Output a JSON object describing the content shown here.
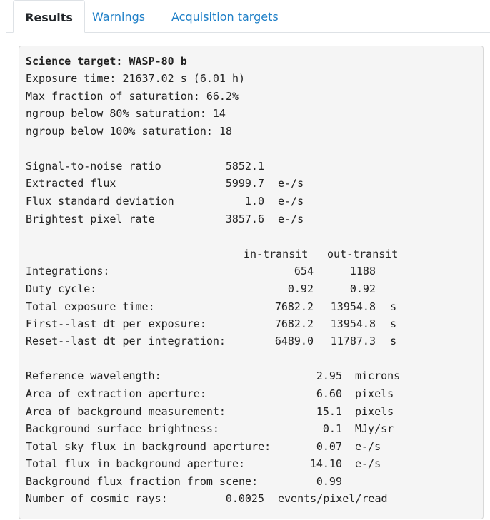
{
  "tabs": [
    {
      "label": "Results",
      "active": true
    },
    {
      "label": "Warnings",
      "active": false
    },
    {
      "label": "Acquisition targets",
      "active": false
    }
  ],
  "summary": {
    "science_target": "Science target: WASP-80 b",
    "exposure_time": "Exposure time: 21637.02 s (6.01 h)",
    "max_saturation": "Max fraction of saturation: 66.2%",
    "ngroup_80": "ngroup below 80% saturation: 14",
    "ngroup_100": "ngroup below 100% saturation: 18"
  },
  "snr": [
    {
      "label": "Signal-to-noise ratio",
      "value": "5852.1",
      "unit": ""
    },
    {
      "label": "Extracted flux",
      "value": "5999.7",
      "unit": "e-/s"
    },
    {
      "label": "Flux standard deviation",
      "value": "1.0",
      "unit": "e-/s"
    },
    {
      "label": "Brightest pixel rate",
      "value": "3857.6",
      "unit": "e-/s"
    }
  ],
  "transit": {
    "col_in": "in-transit",
    "col_out": "out-transit",
    "rows": [
      {
        "label": "Integrations:",
        "in": "654",
        "out": "1188",
        "unit": ""
      },
      {
        "label": "Duty cycle:",
        "in": "0.92",
        "out": "0.92",
        "unit": ""
      },
      {
        "label": "Total exposure time:",
        "in": "7682.2",
        "out": "13954.8",
        "unit": "s"
      },
      {
        "label": "First--last dt per exposure:",
        "in": "7682.2",
        "out": "13954.8",
        "unit": "s"
      },
      {
        "label": "Reset--last dt per integration:",
        "in": "6489.0",
        "out": "11787.3",
        "unit": "s"
      }
    ]
  },
  "background": [
    {
      "label": "Reference wavelength:",
      "value": "2.95",
      "unit": "microns"
    },
    {
      "label": "Area of extraction aperture:",
      "value": "6.60",
      "unit": "pixels"
    },
    {
      "label": "Area of background measurement:",
      "value": "15.1",
      "unit": "pixels"
    },
    {
      "label": "Background surface brightness:",
      "value": "0.1",
      "unit": "MJy/sr"
    },
    {
      "label": "Total sky flux in background aperture:",
      "value": "0.07",
      "unit": "e-/s"
    },
    {
      "label": "Total flux in background aperture:",
      "value": "14.10",
      "unit": "e-/s"
    },
    {
      "label": "Background flux fraction from scene:",
      "value": "0.99",
      "unit": ""
    }
  ],
  "cosmic": {
    "label": "Number of cosmic rays:",
    "value": "0.0025",
    "unit": "events/pixel/read"
  },
  "colors": {
    "link": "#1e7fc7",
    "panel_bg": "#f5f5f5",
    "border": "#dee2e6"
  }
}
